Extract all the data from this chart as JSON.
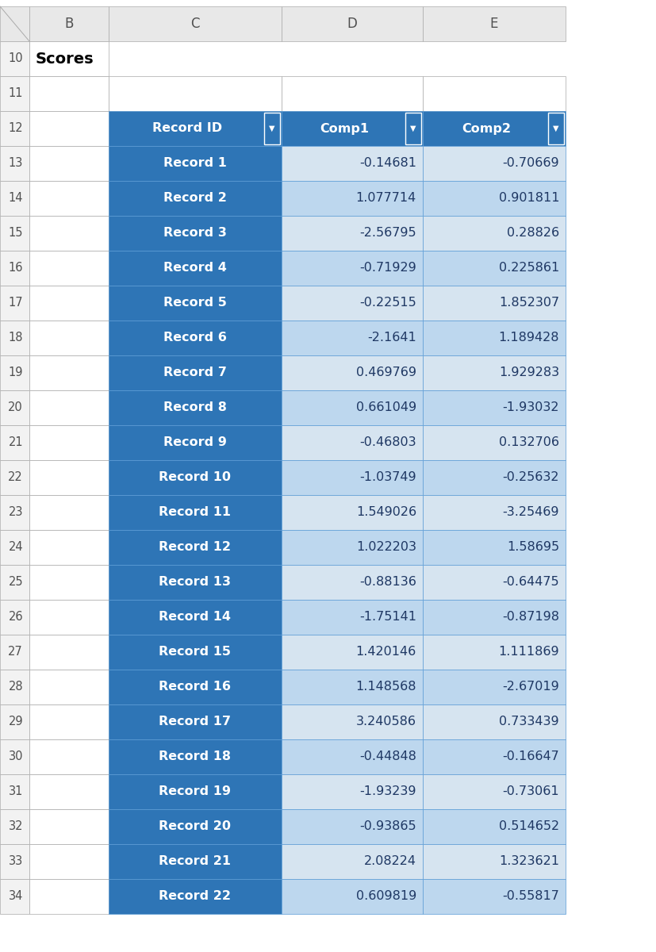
{
  "title": "Scores",
  "col_headers": [
    "B",
    "C",
    "D",
    "E"
  ],
  "row_numbers": [
    "10",
    "11",
    "12",
    "13",
    "14",
    "15",
    "16",
    "17",
    "18",
    "19",
    "20",
    "21",
    "22",
    "23",
    "24",
    "25",
    "26",
    "27",
    "28",
    "29",
    "30",
    "31",
    "32",
    "33",
    "34"
  ],
  "table_headers": [
    "Record ID",
    "Comp1",
    "Comp2"
  ],
  "records": [
    [
      "Record 1",
      "-0.14681",
      "-0.70669"
    ],
    [
      "Record 2",
      "1.077714",
      "0.901811"
    ],
    [
      "Record 3",
      "-2.56795",
      "0.28826"
    ],
    [
      "Record 4",
      "-0.71929",
      "0.225861"
    ],
    [
      "Record 5",
      "-0.22515",
      "1.852307"
    ],
    [
      "Record 6",
      "-2.1641",
      "1.189428"
    ],
    [
      "Record 7",
      "0.469769",
      "1.929283"
    ],
    [
      "Record 8",
      "0.661049",
      "-1.93032"
    ],
    [
      "Record 9",
      "-0.46803",
      "0.132706"
    ],
    [
      "Record 10",
      "-1.03749",
      "-0.25632"
    ],
    [
      "Record 11",
      "1.549026",
      "-3.25469"
    ],
    [
      "Record 12",
      "1.022203",
      "1.58695"
    ],
    [
      "Record 13",
      "-0.88136",
      "-0.64475"
    ],
    [
      "Record 14",
      "-1.75141",
      "-0.87198"
    ],
    [
      "Record 15",
      "1.420146",
      "1.111869"
    ],
    [
      "Record 16",
      "1.148568",
      "-2.67019"
    ],
    [
      "Record 17",
      "3.240586",
      "0.733439"
    ],
    [
      "Record 18",
      "-0.44848",
      "-0.16647"
    ],
    [
      "Record 19",
      "-1.93239",
      "-0.73061"
    ],
    [
      "Record 20",
      "-0.93865",
      "0.514652"
    ],
    [
      "Record 21",
      "2.08224",
      "1.323621"
    ],
    [
      "Record 22",
      "0.609819",
      "-0.55817"
    ]
  ],
  "header_bg_color": "#2E75B6",
  "header_text_color": "#FFFFFF",
  "record_id_bg_color": "#2E75B6",
  "record_id_text_color": "#FFFFFF",
  "data_bg_color_odd": "#D6E4F0",
  "data_bg_color_even": "#BDD7EE",
  "data_text_color": "#1F3864",
  "excel_header_bg": "#E8E8E8",
  "excel_header_text": "#505050",
  "row_num_bg": "#F2F2F2",
  "row_num_text": "#505050",
  "background_color": "#FFFFFF",
  "title_text_color": "#000000",
  "border_color": "#AAAAAA"
}
